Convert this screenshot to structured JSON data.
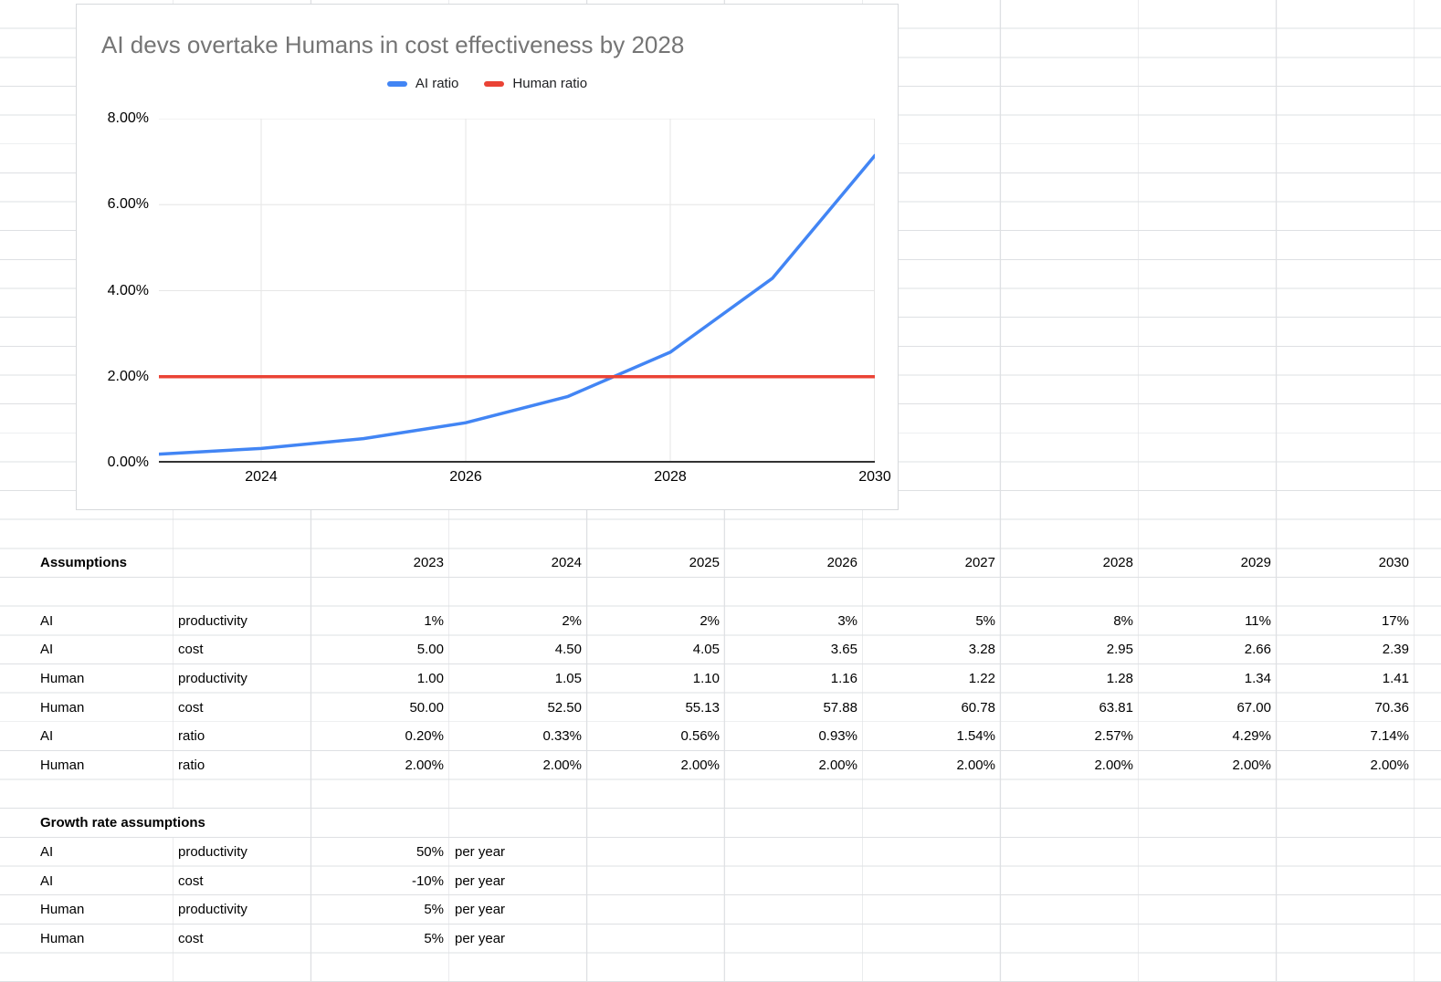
{
  "sheet": {
    "section1_title": "Assumptions",
    "years": [
      "2023",
      "2024",
      "2025",
      "2026",
      "2027",
      "2028",
      "2029",
      "2030"
    ],
    "assumption_rows": [
      {
        "entity": "AI",
        "metric": "productivity",
        "values": [
          "1%",
          "2%",
          "2%",
          "3%",
          "5%",
          "8%",
          "11%",
          "17%"
        ]
      },
      {
        "entity": "AI",
        "metric": "cost",
        "values": [
          "5.00",
          "4.50",
          "4.05",
          "3.65",
          "3.28",
          "2.95",
          "2.66",
          "2.39"
        ]
      },
      {
        "entity": "Human",
        "metric": "productivity",
        "values": [
          "1.00",
          "1.05",
          "1.10",
          "1.16",
          "1.22",
          "1.28",
          "1.34",
          "1.41"
        ]
      },
      {
        "entity": "Human",
        "metric": "cost",
        "values": [
          "50.00",
          "52.50",
          "55.13",
          "57.88",
          "60.78",
          "63.81",
          "67.00",
          "70.36"
        ]
      },
      {
        "entity": "AI",
        "metric": "ratio",
        "values": [
          "0.20%",
          "0.33%",
          "0.56%",
          "0.93%",
          "1.54%",
          "2.57%",
          "4.29%",
          "7.14%"
        ]
      },
      {
        "entity": "Human",
        "metric": "ratio",
        "values": [
          "2.00%",
          "2.00%",
          "2.00%",
          "2.00%",
          "2.00%",
          "2.00%",
          "2.00%",
          "2.00%"
        ]
      }
    ],
    "section2_title": "Growth rate assumptions",
    "growth_rows": [
      {
        "entity": "AI",
        "metric": "productivity",
        "rate": "50%",
        "unit": "per year"
      },
      {
        "entity": "AI",
        "metric": "cost",
        "rate": "-10%",
        "unit": "per year"
      },
      {
        "entity": "Human",
        "metric": "productivity",
        "rate": "5%",
        "unit": "per year"
      },
      {
        "entity": "Human",
        "metric": "cost",
        "rate": "5%",
        "unit": "per year"
      }
    ]
  },
  "chart_data": {
    "type": "line",
    "title": "AI devs overtake Humans in cost effectiveness by 2028",
    "x": [
      2023,
      2024,
      2025,
      2026,
      2027,
      2028,
      2029,
      2030
    ],
    "series": [
      {
        "name": "AI ratio",
        "color": "#4285f4",
        "values": [
          0.002,
          0.0033,
          0.0056,
          0.0093,
          0.0154,
          0.0257,
          0.0429,
          0.0714
        ]
      },
      {
        "name": "Human ratio",
        "color": "#ea4335",
        "values": [
          0.02,
          0.02,
          0.02,
          0.02,
          0.02,
          0.02,
          0.02,
          0.02
        ]
      }
    ],
    "ylim": [
      0,
      0.08
    ],
    "y_ticks": [
      {
        "v": 0.0,
        "label": "0.00%"
      },
      {
        "v": 0.02,
        "label": "2.00%"
      },
      {
        "v": 0.04,
        "label": "4.00%"
      },
      {
        "v": 0.06,
        "label": "6.00%"
      },
      {
        "v": 0.08,
        "label": "8.00%"
      }
    ],
    "x_ticks": [
      {
        "v": 2024,
        "label": "2024"
      },
      {
        "v": 2026,
        "label": "2026"
      },
      {
        "v": 2028,
        "label": "2028"
      },
      {
        "v": 2030,
        "label": "2030"
      }
    ],
    "grid": true,
    "legend_position": "top",
    "axis_color": "#333333",
    "gridline_color": "#e6e6e6",
    "title_color": "#757575"
  }
}
